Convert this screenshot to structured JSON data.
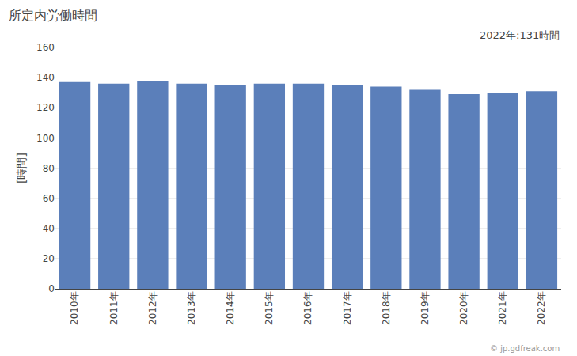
{
  "chart_data": {
    "type": "bar",
    "title": "所定内労働時間",
    "ylabel": "[時間]",
    "annotations": [
      "2022年:131時間",
      "© jp.gdfreak.com"
    ],
    "categories": [
      "2010年",
      "2011年",
      "2012年",
      "2013年",
      "2014年",
      "2015年",
      "2016年",
      "2017年",
      "2018年",
      "2019年",
      "2020年",
      "2021年",
      "2022年"
    ],
    "values": [
      137,
      136,
      138,
      136,
      135,
      136,
      136,
      135,
      134,
      132,
      129,
      130,
      131
    ],
    "color": "#5b7fba",
    "ylim": [
      0,
      160
    ],
    "yticks": [
      0,
      20,
      40,
      60,
      80,
      100,
      120,
      140,
      160
    ],
    "grid": true
  }
}
